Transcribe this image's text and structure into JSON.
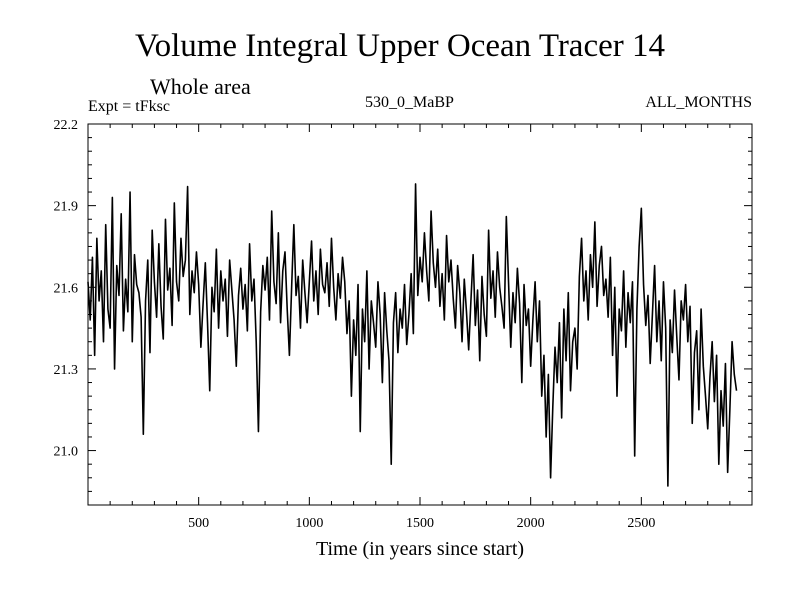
{
  "chart_data": {
    "type": "line",
    "title": "Volume Integral Upper Ocean Tracer 14",
    "subtitle": "Whole area",
    "experiment_label": "Expt = tFksc",
    "run_label": "530_0_MaBP",
    "period_label": "ALL_MONTHS",
    "xlabel": "Time (in years since start)",
    "ylabel": "",
    "xlim": [
      0,
      3000
    ],
    "ylim": [
      20.8,
      22.2
    ],
    "xticks": [
      500,
      1000,
      1500,
      2000,
      2500
    ],
    "yticks": [
      21.0,
      21.3,
      21.6,
      21.9,
      22.2
    ],
    "ytick_labels": [
      "21.0",
      "21.3",
      "21.6",
      "21.9",
      "22.2"
    ],
    "xtick_labels": [
      "500",
      "1000",
      "1500",
      "2000",
      "2500"
    ],
    "grid": false,
    "series": [
      {
        "name": "Tracer 14",
        "x_start": 0,
        "x_step": 10,
        "values": [
          21.62,
          21.48,
          21.71,
          21.35,
          21.78,
          21.55,
          21.66,
          21.4,
          21.83,
          21.52,
          21.45,
          21.93,
          21.3,
          21.68,
          21.57,
          21.87,
          21.44,
          21.63,
          21.51,
          21.95,
          21.4,
          21.72,
          21.61,
          21.58,
          21.49,
          21.06,
          21.55,
          21.7,
          21.36,
          21.81,
          21.62,
          21.49,
          21.76,
          21.53,
          21.41,
          21.85,
          21.59,
          21.67,
          21.46,
          21.91,
          21.62,
          21.55,
          21.78,
          21.64,
          21.7,
          21.97,
          21.5,
          21.66,
          21.58,
          21.73,
          21.61,
          21.38,
          21.54,
          21.69,
          21.47,
          21.22,
          21.6,
          21.51,
          21.74,
          21.45,
          21.66,
          21.55,
          21.63,
          21.42,
          21.7,
          21.59,
          21.48,
          21.31,
          21.57,
          21.67,
          21.52,
          21.61,
          21.44,
          21.76,
          21.55,
          21.63,
          21.4,
          21.07,
          21.51,
          21.68,
          21.59,
          21.71,
          21.48,
          21.88,
          21.62,
          21.54,
          21.8,
          21.47,
          21.66,
          21.73,
          21.52,
          21.35,
          21.6,
          21.83,
          21.57,
          21.64,
          21.45,
          21.7,
          21.58,
          21.47,
          21.62,
          21.77,
          21.55,
          21.66,
          21.5,
          21.74,
          21.61,
          21.58,
          21.69,
          21.53,
          21.78,
          21.6,
          21.48,
          21.65,
          21.56,
          21.71,
          21.62,
          21.43,
          21.55,
          21.2,
          21.48,
          21.35,
          21.61,
          21.07,
          21.52,
          21.4,
          21.66,
          21.3,
          21.55,
          21.47,
          21.38,
          21.62,
          21.5,
          21.25,
          21.58,
          21.44,
          21.33,
          20.95,
          21.47,
          21.58,
          21.36,
          21.52,
          21.45,
          21.61,
          21.39,
          21.5,
          21.65,
          21.43,
          21.98,
          21.57,
          21.71,
          21.62,
          21.8,
          21.66,
          21.55,
          21.88,
          21.69,
          21.6,
          21.74,
          21.53,
          21.65,
          21.48,
          21.79,
          21.62,
          21.7,
          21.56,
          21.45,
          21.68,
          21.58,
          21.4,
          21.63,
          21.51,
          21.37,
          21.55,
          21.72,
          21.46,
          21.59,
          21.33,
          21.64,
          21.5,
          21.42,
          21.81,
          21.56,
          21.66,
          21.49,
          21.73,
          21.6,
          21.53,
          21.45,
          21.86,
          21.62,
          21.38,
          21.58,
          21.47,
          21.67,
          21.54,
          21.25,
          21.61,
          21.46,
          21.52,
          21.31,
          21.48,
          21.62,
          21.4,
          21.55,
          21.2,
          21.35,
          21.05,
          21.28,
          20.9,
          21.16,
          21.38,
          21.25,
          21.47,
          21.12,
          21.52,
          21.33,
          21.58,
          21.22,
          21.4,
          21.45,
          21.3,
          21.64,
          21.78,
          21.55,
          21.66,
          21.48,
          21.72,
          21.6,
          21.84,
          21.53,
          21.68,
          21.75,
          21.57,
          21.63,
          21.49,
          21.71,
          21.35,
          21.6,
          21.2,
          21.52,
          21.44,
          21.66,
          21.38,
          21.58,
          21.47,
          21.62,
          20.98,
          21.52,
          21.75,
          21.89,
          21.61,
          21.46,
          21.57,
          21.32,
          21.5,
          21.68,
          21.4,
          21.55,
          21.33,
          21.62,
          21.45,
          20.87,
          21.48,
          21.36,
          21.59,
          21.42,
          21.26,
          21.55,
          21.48,
          21.61,
          21.4,
          21.53,
          21.1,
          21.36,
          21.44,
          21.15,
          21.52,
          21.31,
          21.2,
          21.08,
          21.27,
          21.4,
          21.18,
          21.35,
          20.95,
          21.22,
          21.09,
          21.32,
          20.92,
          21.15,
          21.4,
          21.28,
          21.22
        ]
      }
    ]
  }
}
